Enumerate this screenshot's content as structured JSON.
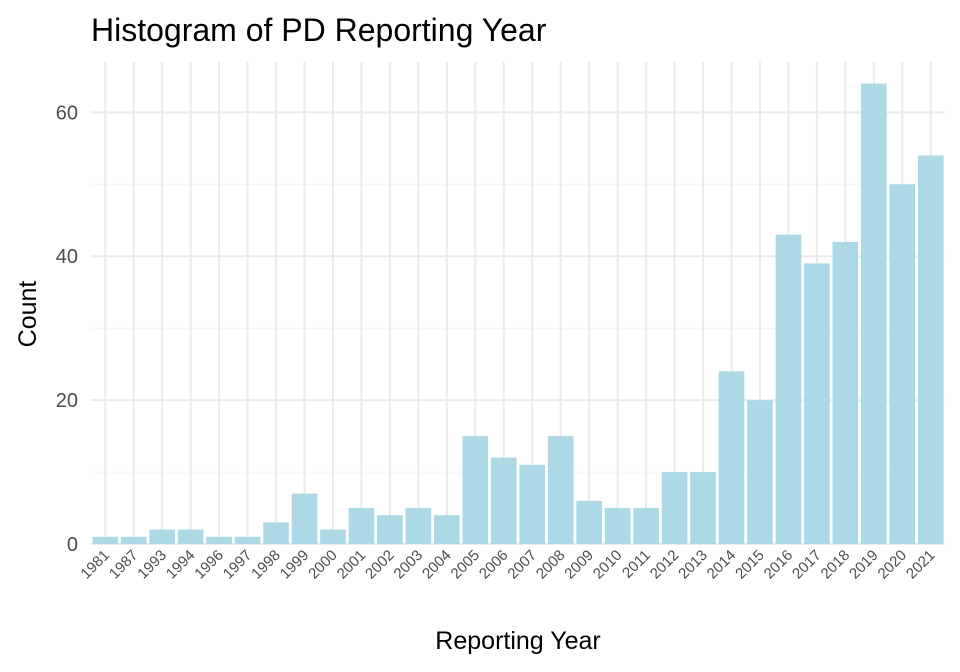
{
  "chart_data": {
    "type": "bar",
    "title": "Histogram of PD Reporting Year",
    "xlabel": "Reporting Year",
    "ylabel": "Count",
    "categories": [
      "1981",
      "1987",
      "1993",
      "1994",
      "1996",
      "1997",
      "1998",
      "1999",
      "2000",
      "2001",
      "2002",
      "2003",
      "2004",
      "2005",
      "2006",
      "2007",
      "2008",
      "2009",
      "2010",
      "2011",
      "2012",
      "2013",
      "2014",
      "2015",
      "2016",
      "2017",
      "2018",
      "2019",
      "2020",
      "2021"
    ],
    "values": [
      1,
      1,
      2,
      2,
      1,
      1,
      3,
      7,
      2,
      5,
      4,
      5,
      4,
      15,
      12,
      11,
      15,
      6,
      5,
      5,
      10,
      10,
      24,
      20,
      43,
      39,
      42,
      64,
      50,
      54
    ],
    "y_ticks": [
      0,
      20,
      40,
      60
    ],
    "ylim": [
      0,
      67
    ],
    "bar_color": "#add8e6",
    "grid": true,
    "legend": "none"
  }
}
